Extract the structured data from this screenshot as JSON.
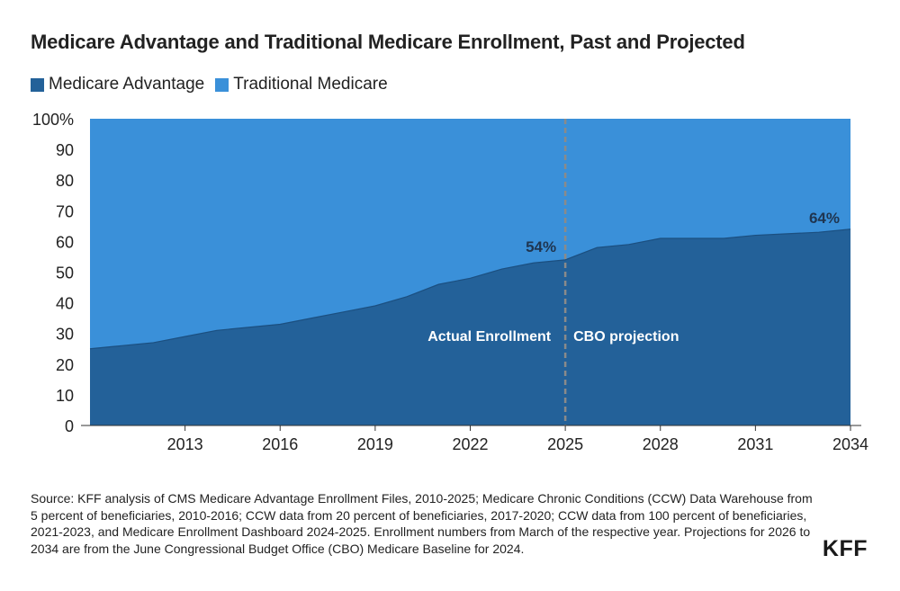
{
  "chart_data": {
    "type": "area",
    "title": "Medicare Advantage and Traditional Medicare Enrollment, Past and Projected",
    "x": [
      2010,
      2011,
      2012,
      2013,
      2014,
      2015,
      2016,
      2017,
      2018,
      2019,
      2020,
      2021,
      2022,
      2023,
      2024,
      2025,
      2026,
      2027,
      2028,
      2029,
      2030,
      2031,
      2032,
      2033,
      2034
    ],
    "series": [
      {
        "name": "Medicare Advantage",
        "color": "#236199",
        "values": [
          25,
          26,
          27,
          29,
          31,
          32,
          33,
          35,
          37,
          39,
          42,
          46,
          48,
          51,
          53,
          54,
          58,
          59,
          61,
          61,
          61,
          62,
          62.5,
          63,
          64
        ]
      },
      {
        "name": "Traditional Medicare",
        "color": "#3a90d9",
        "values": [
          75,
          74,
          73,
          71,
          69,
          68,
          67,
          65,
          63,
          61,
          58,
          54,
          52,
          49,
          47,
          46,
          42,
          41,
          39,
          39,
          39,
          38,
          37.5,
          37,
          36
        ]
      }
    ],
    "xticks": [
      "2013",
      "2016",
      "2019",
      "2022",
      "2025",
      "2028",
      "2031",
      "2034"
    ],
    "xtick_values": [
      2013,
      2016,
      2019,
      2022,
      2025,
      2028,
      2031,
      2034
    ],
    "yticks": [
      "0",
      "10",
      "20",
      "30",
      "40",
      "50",
      "60",
      "70",
      "80",
      "90",
      "100%"
    ],
    "ytick_values": [
      0,
      10,
      20,
      30,
      40,
      50,
      60,
      70,
      80,
      90,
      100
    ],
    "xlim": [
      2010,
      2034
    ],
    "ylim": [
      0,
      100
    ],
    "divider_x": 2025,
    "annotations": {
      "actual": "Actual Enrollment",
      "projection": "CBO projection",
      "label_2025": "54%",
      "label_2034": "64%"
    },
    "legend_position": "top-left"
  },
  "legend": {
    "ma_label": "Medicare Advantage",
    "tm_label": "Traditional Medicare"
  },
  "source_text": "Source: KFF analysis of CMS Medicare Advantage Enrollment Files, 2010-2025; Medicare Chronic Conditions (CCW) Data Warehouse from 5 percent of beneficiaries, 2010-2016; CCW data from 20 percent of beneficiaries, 2017-2020; CCW data from 100 percent of beneficiaries, 2021-2023, and Medicare Enrollment Dashboard 2024-2025. Enrollment numbers from March of the respective year. Projections for 2026 to 2034 are from the June Congressional Budget Office (CBO) Medicare Baseline for 2024.",
  "logo_text": "KFF"
}
